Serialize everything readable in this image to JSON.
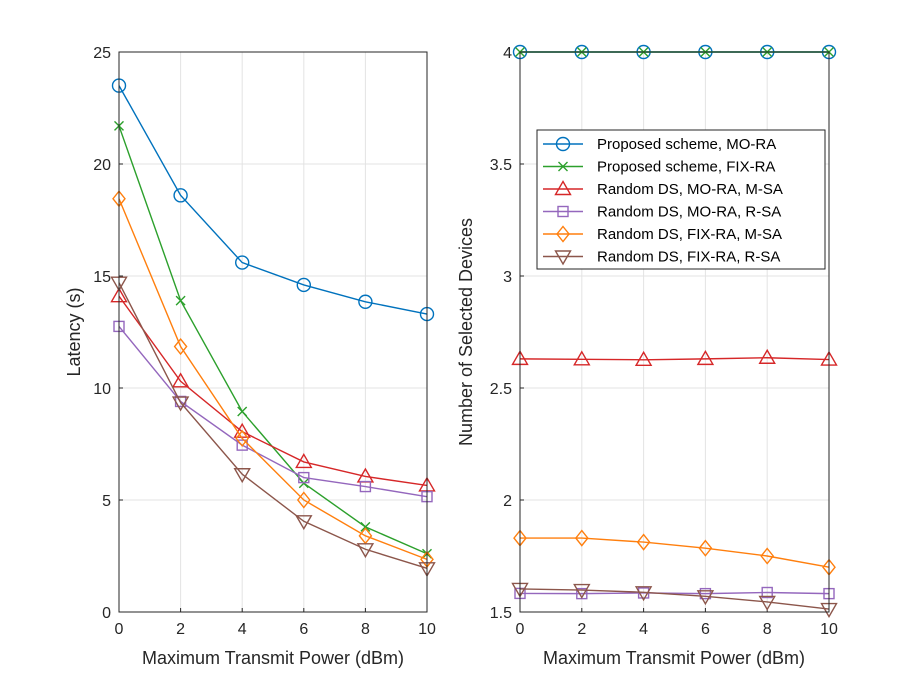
{
  "chart_data": [
    {
      "type": "line",
      "title": "",
      "xlabel": "Maximum Transmit Power (dBm)",
      "ylabel": "Latency (s)",
      "xlim": [
        0,
        10
      ],
      "ylim": [
        0,
        25
      ],
      "x": [
        0,
        2,
        4,
        6,
        8,
        10
      ],
      "xticks": [
        "0",
        "2",
        "4",
        "6",
        "8",
        "10"
      ],
      "yticks": [
        "0",
        "5",
        "10",
        "15",
        "20",
        "25"
      ],
      "grid": true,
      "series": [
        {
          "name": "Proposed scheme, MO-RA",
          "color": "#0072BD",
          "marker": "circle",
          "values": [
            23.5,
            18.6,
            15.6,
            14.6,
            13.85,
            13.3
          ]
        },
        {
          "name": "Proposed scheme, FIX-RA",
          "color": "#2CA02C",
          "marker": "x",
          "values": [
            21.7,
            13.9,
            8.95,
            5.75,
            3.8,
            2.6
          ]
        },
        {
          "name": "Random DS, MO-RA, M-SA",
          "color": "#D62728",
          "marker": "triangle-up",
          "values": [
            14.1,
            10.3,
            8.05,
            6.7,
            6.05,
            5.65
          ]
        },
        {
          "name": "Random DS, MO-RA, R-SA",
          "color": "#9467BD",
          "marker": "square",
          "values": [
            12.75,
            9.4,
            7.45,
            6.0,
            5.6,
            5.15
          ]
        },
        {
          "name": "Random DS, FIX-RA, M-SA",
          "color": "#FF7F0E",
          "marker": "diamond",
          "values": [
            18.45,
            11.85,
            7.75,
            5.0,
            3.4,
            2.35
          ]
        },
        {
          "name": "Random DS, FIX-RA, R-SA",
          "color": "#8C564B",
          "marker": "triangle-down",
          "values": [
            14.7,
            9.35,
            6.15,
            4.05,
            2.8,
            1.95
          ]
        }
      ]
    },
    {
      "type": "line",
      "title": "",
      "xlabel": "Maximum Transmit Power (dBm)",
      "ylabel": "Number of Selected Devices",
      "xlim": [
        0,
        10
      ],
      "ylim": [
        1.5,
        4
      ],
      "x": [
        0,
        2,
        4,
        6,
        8,
        10
      ],
      "xticks": [
        "0",
        "2",
        "4",
        "6",
        "8",
        "10"
      ],
      "yticks": [
        "1.5",
        "2",
        "2.5",
        "3",
        "3.5",
        "4"
      ],
      "grid": true,
      "legend_position": "upper-right",
      "series": [
        {
          "name": "Proposed scheme, MO-RA",
          "color": "#0072BD",
          "marker": "circle",
          "values": [
            4.0,
            4.0,
            4.0,
            4.0,
            4.0,
            4.0
          ]
        },
        {
          "name": "Proposed scheme, FIX-RA",
          "color": "#2CA02C",
          "marker": "x",
          "values": [
            4.0,
            4.0,
            4.0,
            4.0,
            4.0,
            4.0
          ]
        },
        {
          "name": "Random DS, MO-RA, M-SA",
          "color": "#D62728",
          "marker": "triangle-up",
          "values": [
            2.63,
            2.628,
            2.626,
            2.63,
            2.635,
            2.627
          ]
        },
        {
          "name": "Random DS, MO-RA, R-SA",
          "color": "#9467BD",
          "marker": "square",
          "values": [
            1.583,
            1.582,
            1.585,
            1.582,
            1.587,
            1.582
          ]
        },
        {
          "name": "Random DS, FIX-RA, M-SA",
          "color": "#FF7F0E",
          "marker": "diamond",
          "values": [
            1.83,
            1.83,
            1.812,
            1.785,
            1.75,
            1.7
          ]
        },
        {
          "name": "Random DS, FIX-RA, R-SA",
          "color": "#8C564B",
          "marker": "triangle-down",
          "values": [
            1.603,
            1.598,
            1.588,
            1.57,
            1.545,
            1.513
          ]
        }
      ]
    }
  ]
}
